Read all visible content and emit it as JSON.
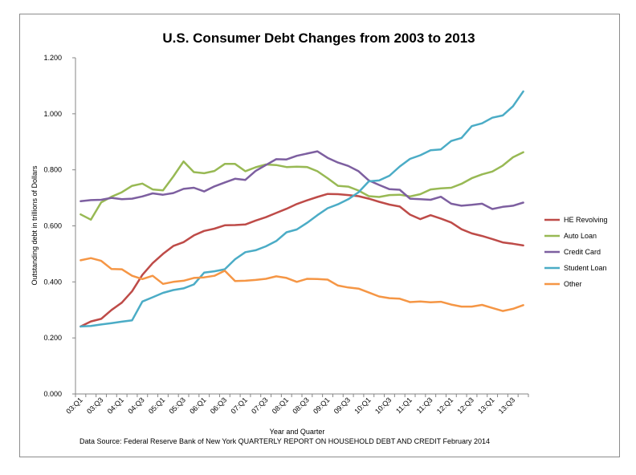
{
  "chart_data": {
    "type": "line",
    "title": "U.S. Consumer Debt Changes from 2003 to 2013",
    "xlabel": "Year and Quarter",
    "ylabel": "Outstanding debt in trillions of Dollars",
    "source_note": "Data Source: Federal Reserve Bank of New York  QUARTERLY REPORT ON HOUSEHOLD DEBT AND CREDIT February 2014",
    "ylim": [
      0,
      1.2
    ],
    "y_ticks": [
      "0.000",
      "0.200",
      "0.400",
      "0.600",
      "0.800",
      "1.000",
      "1.200"
    ],
    "grid": false,
    "legend_position": "right",
    "x": [
      "03:Q1",
      "03:Q2",
      "03:Q3",
      "03:Q4",
      "04:Q1",
      "04:Q2",
      "04:Q3",
      "04:Q4",
      "05:Q1",
      "05:Q2",
      "05:Q3",
      "05:Q4",
      "06:Q1",
      "06:Q2",
      "06:Q3",
      "06:Q4",
      "07:Q1",
      "07:Q2",
      "07:Q3",
      "07:Q4",
      "08:Q1",
      "08:Q2",
      "08:Q3",
      "08:Q4",
      "09:Q1",
      "09:Q2",
      "09:Q3",
      "09:Q4",
      "10:Q1",
      "10:Q2",
      "10:Q3",
      "10:Q4",
      "11:Q1",
      "11:Q2",
      "11:Q3",
      "11:Q4",
      "12:Q1",
      "12:Q2",
      "12:Q3",
      "12:Q4",
      "13:Q1",
      "13:Q2",
      "13:Q3",
      "13:Q4"
    ],
    "x_tick_labels": [
      "03:Q1",
      "03:Q3",
      "04:Q1",
      "04:Q3",
      "05:Q1",
      "05:Q3",
      "06:Q1",
      "06:Q3",
      "07:Q1",
      "07:Q3",
      "08:Q1",
      "08:Q3",
      "09:Q1",
      "09:Q3",
      "10:Q1",
      "10:Q3",
      "11:Q1",
      "11:Q3",
      "12:Q1",
      "12:Q3",
      "13:Q1",
      "13:Q3"
    ],
    "series": [
      {
        "name": "HE Revolving",
        "color": "#be4b48",
        "values": [
          0.241,
          0.259,
          0.268,
          0.3,
          0.326,
          0.367,
          0.425,
          0.467,
          0.5,
          0.528,
          0.542,
          0.566,
          0.582,
          0.59,
          0.602,
          0.603,
          0.605,
          0.619,
          0.631,
          0.646,
          0.661,
          0.678,
          0.691,
          0.703,
          0.714,
          0.713,
          0.71,
          0.706,
          0.697,
          0.686,
          0.676,
          0.669,
          0.64,
          0.624,
          0.638,
          0.626,
          0.612,
          0.588,
          0.573,
          0.564,
          0.553,
          0.541,
          0.536,
          0.53
        ]
      },
      {
        "name": "Auto Loan",
        "color": "#98b954",
        "values": [
          0.641,
          0.622,
          0.684,
          0.704,
          0.72,
          0.743,
          0.751,
          0.73,
          0.727,
          0.776,
          0.83,
          0.792,
          0.788,
          0.796,
          0.821,
          0.821,
          0.795,
          0.809,
          0.819,
          0.817,
          0.81,
          0.811,
          0.81,
          0.795,
          0.77,
          0.743,
          0.74,
          0.726,
          0.706,
          0.703,
          0.71,
          0.711,
          0.705,
          0.713,
          0.73,
          0.734,
          0.736,
          0.75,
          0.77,
          0.784,
          0.794,
          0.815,
          0.845,
          0.863
        ]
      },
      {
        "name": "Credit Card",
        "color": "#7d5fa0",
        "values": [
          0.688,
          0.692,
          0.693,
          0.7,
          0.695,
          0.697,
          0.705,
          0.716,
          0.711,
          0.717,
          0.732,
          0.736,
          0.723,
          0.741,
          0.755,
          0.768,
          0.764,
          0.796,
          0.817,
          0.838,
          0.837,
          0.85,
          0.858,
          0.866,
          0.843,
          0.826,
          0.814,
          0.795,
          0.762,
          0.746,
          0.731,
          0.729,
          0.697,
          0.695,
          0.693,
          0.704,
          0.679,
          0.672,
          0.675,
          0.679,
          0.66,
          0.668,
          0.672,
          0.683
        ]
      },
      {
        "name": "Student Loan",
        "color": "#4bacc6",
        "values": [
          0.241,
          0.243,
          0.248,
          0.253,
          0.258,
          0.263,
          0.33,
          0.345,
          0.361,
          0.371,
          0.377,
          0.391,
          0.433,
          0.438,
          0.445,
          0.481,
          0.506,
          0.513,
          0.527,
          0.546,
          0.577,
          0.587,
          0.611,
          0.638,
          0.663,
          0.677,
          0.695,
          0.72,
          0.759,
          0.762,
          0.779,
          0.812,
          0.839,
          0.852,
          0.87,
          0.873,
          0.903,
          0.914,
          0.956,
          0.966,
          0.986,
          0.994,
          1.027,
          1.08
        ]
      },
      {
        "name": "Other",
        "color": "#f59645",
        "values": [
          0.477,
          0.485,
          0.475,
          0.446,
          0.445,
          0.422,
          0.41,
          0.422,
          0.393,
          0.4,
          0.404,
          0.414,
          0.416,
          0.422,
          0.44,
          0.403,
          0.404,
          0.407,
          0.411,
          0.42,
          0.414,
          0.4,
          0.411,
          0.41,
          0.408,
          0.387,
          0.38,
          0.376,
          0.362,
          0.348,
          0.342,
          0.34,
          0.328,
          0.33,
          0.327,
          0.329,
          0.319,
          0.312,
          0.312,
          0.318,
          0.307,
          0.296,
          0.304,
          0.317
        ]
      }
    ]
  }
}
